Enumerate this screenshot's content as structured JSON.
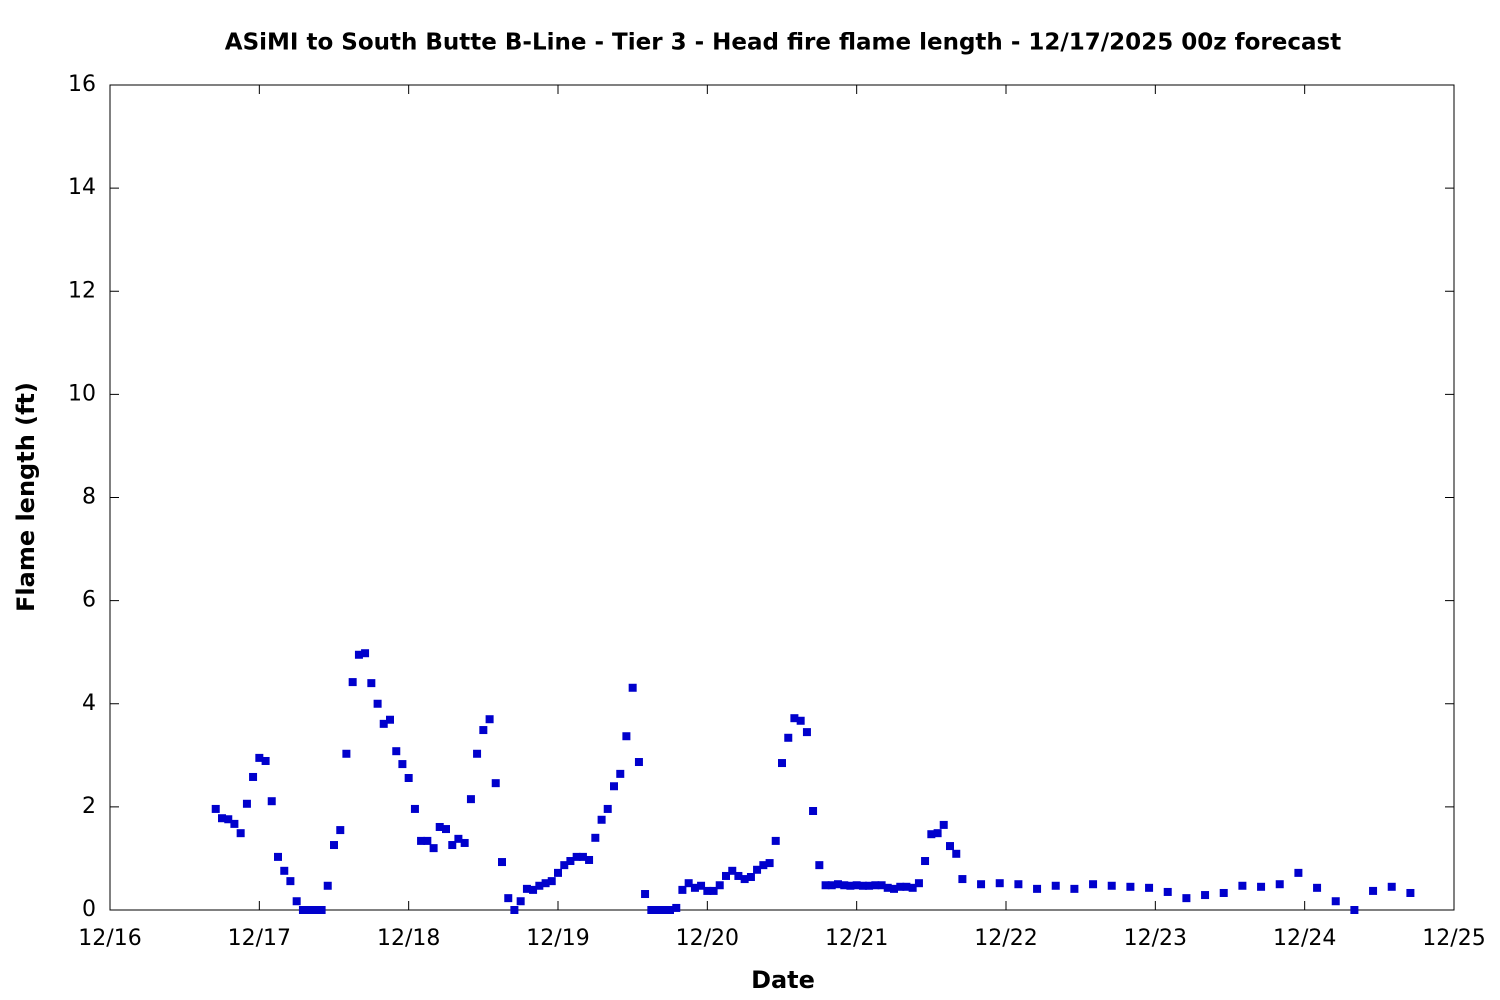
{
  "chart_data": {
    "type": "scatter",
    "title": "ASiMI to South Butte B-Line - Tier 3 - Head fire flame length - 12/17/2025 00z forecast",
    "x_label": "Date",
    "y_label": "Flame length (ft)",
    "color": "#0000cc",
    "xlim": [
      16,
      25
    ],
    "ylim": [
      0,
      16
    ],
    "xticks": [
      {
        "value": 16,
        "label": "12/16"
      },
      {
        "value": 17,
        "label": "12/17"
      },
      {
        "value": 18,
        "label": "12/18"
      },
      {
        "value": 19,
        "label": "12/19"
      },
      {
        "value": 20,
        "label": "12/20"
      },
      {
        "value": 21,
        "label": "12/21"
      },
      {
        "value": 22,
        "label": "12/22"
      },
      {
        "value": 23,
        "label": "12/23"
      },
      {
        "value": 24,
        "label": "12/24"
      },
      {
        "value": 25,
        "label": "12/25"
      }
    ],
    "yticks": [
      0,
      2,
      4,
      6,
      8,
      10,
      12,
      14,
      16
    ],
    "x": [
      16.708,
      16.75,
      16.792,
      16.833,
      16.875,
      16.917,
      16.958,
      17,
      17.042,
      17.083,
      17.125,
      17.167,
      17.208,
      17.25,
      17.292,
      17.333,
      17.375,
      17.417,
      17.458,
      17.5,
      17.542,
      17.583,
      17.625,
      17.667,
      17.708,
      17.75,
      17.792,
      17.833,
      17.875,
      17.917,
      17.958,
      18,
      18.042,
      18.083,
      18.125,
      18.167,
      18.208,
      18.25,
      18.292,
      18.333,
      18.375,
      18.417,
      18.458,
      18.5,
      18.542,
      18.583,
      18.625,
      18.667,
      18.708,
      18.75,
      18.792,
      18.833,
      18.875,
      18.917,
      18.958,
      19,
      19.042,
      19.083,
      19.125,
      19.167,
      19.208,
      19.25,
      19.292,
      19.333,
      19.375,
      19.417,
      19.458,
      19.5,
      19.542,
      19.583,
      19.625,
      19.667,
      19.708,
      19.75,
      19.792,
      19.833,
      19.875,
      19.917,
      19.958,
      20,
      20.042,
      20.083,
      20.125,
      20.167,
      20.208,
      20.25,
      20.292,
      20.333,
      20.375,
      20.417,
      20.458,
      20.5,
      20.542,
      20.583,
      20.625,
      20.667,
      20.708,
      20.75,
      20.792,
      20.833,
      20.875,
      20.917,
      20.958,
      21,
      21.042,
      21.083,
      21.125,
      21.167,
      21.208,
      21.25,
      21.292,
      21.333,
      21.375,
      21.417,
      21.458,
      21.5,
      21.542,
      21.583,
      21.625,
      21.667,
      21.708,
      21.833,
      21.958,
      22.083,
      22.208,
      22.333,
      22.458,
      22.583,
      22.708,
      22.833,
      22.958,
      23.083,
      23.208,
      23.333,
      23.458,
      23.583,
      23.708,
      23.833,
      23.958,
      24.083,
      24.208,
      24.333,
      24.458,
      24.583,
      24.708
    ],
    "values": [
      1.96,
      1.78,
      1.76,
      1.67,
      1.49,
      2.06,
      2.58,
      2.95,
      2.89,
      2.11,
      1.03,
      0.76,
      0.56,
      0.17,
      0,
      0,
      0,
      0,
      0.47,
      1.26,
      1.55,
      3.03,
      4.42,
      4.95,
      4.98,
      4.4,
      4.0,
      3.61,
      3.69,
      3.08,
      2.83,
      2.56,
      1.96,
      1.34,
      1.34,
      1.2,
      1.61,
      1.57,
      1.26,
      1.38,
      1.3,
      2.15,
      3.03,
      3.49,
      3.7,
      2.46,
      0.93,
      0.23,
      0,
      0.17,
      0.41,
      0.39,
      0.47,
      0.52,
      0.56,
      0.72,
      0.87,
      0.95,
      1.03,
      1.03,
      0.97,
      1.4,
      1.75,
      1.96,
      2.4,
      2.64,
      3.37,
      4.31,
      2.87,
      0.31,
      0,
      0,
      0,
      0,
      0.04,
      0.39,
      0.52,
      0.43,
      0.47,
      0.37,
      0.37,
      0.48,
      0.66,
      0.76,
      0.66,
      0.6,
      0.64,
      0.78,
      0.87,
      0.91,
      1.34,
      2.85,
      3.34,
      3.72,
      3.67,
      3.45,
      1.92,
      0.87,
      0.48,
      0.48,
      0.5,
      0.48,
      0.47,
      0.48,
      0.47,
      0.47,
      0.48,
      0.48,
      0.43,
      0.41,
      0.45,
      0.45,
      0.43,
      0.52,
      0.95,
      1.47,
      1.49,
      1.65,
      1.24,
      1.09,
      0.6,
      0.5,
      0.52,
      0.5,
      0.41,
      0.47,
      0.41,
      0.5,
      0.47,
      0.45,
      0.43,
      0.35,
      0.23,
      0.29,
      0.33,
      0.47,
      0.45,
      0.5,
      0.72,
      0.43,
      0.17,
      0,
      0.37,
      0.45,
      0.33
    ]
  }
}
